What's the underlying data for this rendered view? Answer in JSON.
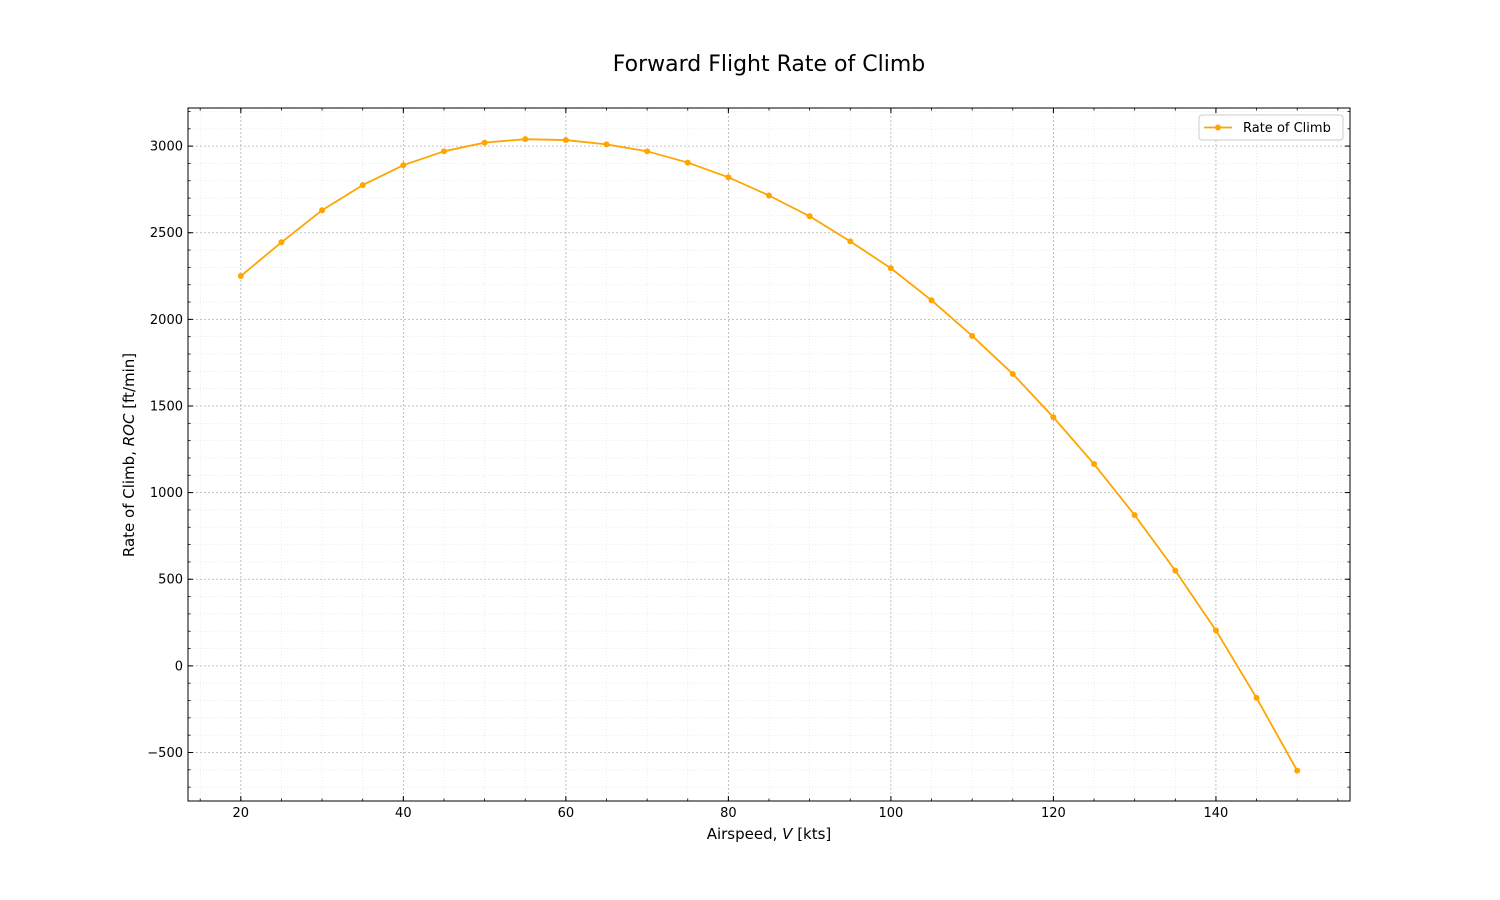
{
  "chart_data": {
    "type": "line",
    "title": "Forward Flight Rate of Climb",
    "xlabel": {
      "prefix": "Airspeed, ",
      "symbol": "V",
      "suffix": " [kts]"
    },
    "ylabel": {
      "prefix": "Rate of Climb, ",
      "symbol": "ROC",
      "suffix": " [ft/min]"
    },
    "xlim": [
      13.5,
      156.5
    ],
    "ylim": [
      -780,
      3220
    ],
    "xticks": [
      20,
      40,
      60,
      80,
      100,
      120,
      140
    ],
    "xtick_labels": [
      "20",
      "40",
      "60",
      "80",
      "100",
      "120",
      "140"
    ],
    "xminor_step": 5,
    "yticks": [
      -500,
      0,
      500,
      1000,
      1500,
      2000,
      2500,
      3000
    ],
    "ytick_labels": [
      "−500",
      "0",
      "500",
      "1000",
      "1500",
      "2000",
      "2500",
      "3000"
    ],
    "yminor_step": 100,
    "grid": true,
    "legend_position": "top-right",
    "series": [
      {
        "name": "Rate of Climb",
        "color": "#ffa500",
        "marker": "circle",
        "x": [
          20,
          25,
          30,
          35,
          40,
          45,
          50,
          55,
          60,
          65,
          70,
          75,
          80,
          85,
          90,
          95,
          100,
          105,
          110,
          115,
          120,
          125,
          130,
          135,
          140,
          145,
          150
        ],
        "y": [
          2250,
          2445,
          2630,
          2775,
          2890,
          2970,
          3020,
          3040,
          3035,
          3010,
          2970,
          2905,
          2820,
          2715,
          2595,
          2450,
          2295,
          2110,
          1905,
          1685,
          1435,
          1165,
          870,
          550,
          205,
          -185,
          -605
        ]
      }
    ]
  }
}
